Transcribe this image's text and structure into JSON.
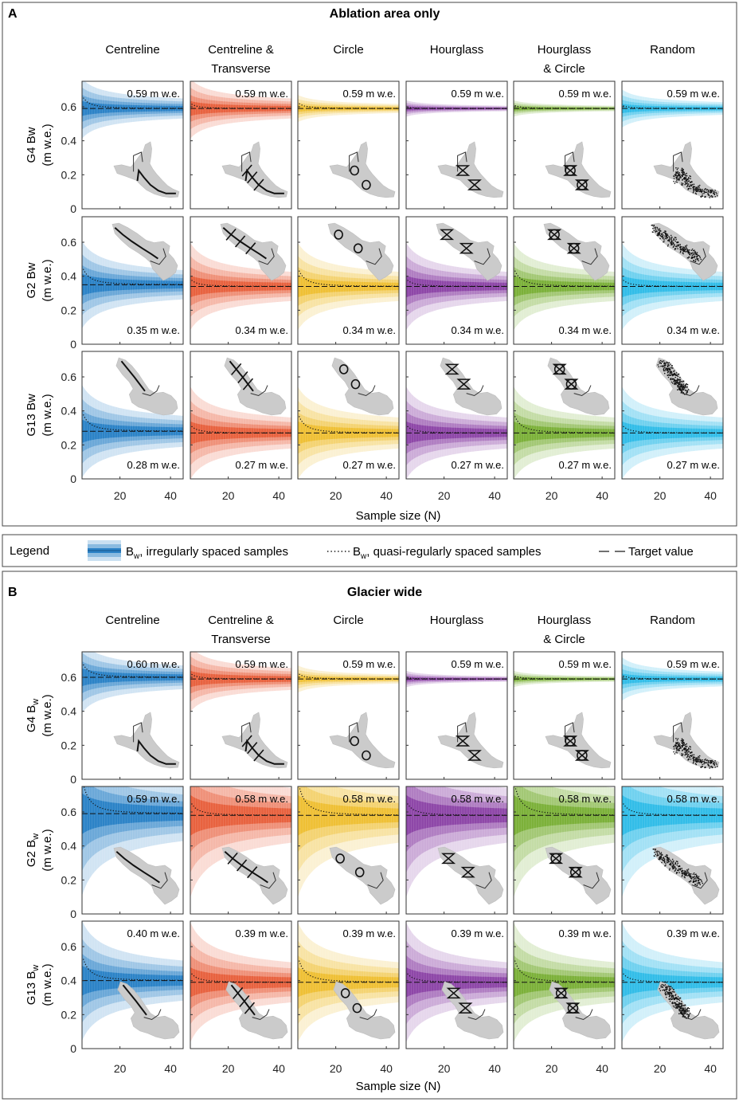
{
  "figure": {
    "legend": {
      "title": "Legend",
      "items": [
        {
          "label_main": "B",
          "label_sub": "w",
          "label_rest": ", irregularly spaced samples",
          "style": "band"
        },
        {
          "label_main": "B",
          "label_sub": "w",
          "label_rest": ", quasi-regularly spaced samples",
          "style": "dotted"
        },
        {
          "label_main": "Target value",
          "label_sub": "",
          "label_rest": "",
          "style": "dash"
        }
      ]
    },
    "colors": {
      "Centreline": "#2c83c7",
      "Centreline & Transverse": "#e8623f",
      "Circle": "#efc035",
      "Hourglass": "#8e47a8",
      "Hourglass & Circle": "#7cb13a",
      "Random": "#32bde8",
      "glacier": "#cbcbcb",
      "marks": "#111111"
    }
  },
  "chart_data": [
    {
      "panel_letter": "A",
      "title": "Ablation area only",
      "type": "area",
      "xlabel": "Sample size (N)",
      "x_range": [
        5,
        45
      ],
      "x_ticks": [
        20,
        40
      ],
      "ylim": [
        0,
        0.75
      ],
      "y_ticks": [
        "0",
        "0.2",
        "0.4",
        "0.6"
      ],
      "y_tick_values": [
        0,
        0.2,
        0.4,
        0.6
      ],
      "columns": [
        {
          "title_lines": [
            "Centreline"
          ]
        },
        {
          "title_lines": [
            "Centreline &",
            "Transverse"
          ]
        },
        {
          "title_lines": [
            "Circle"
          ]
        },
        {
          "title_lines": [
            "Hourglass"
          ]
        },
        {
          "title_lines": [
            "Hourglass",
            "& Circle"
          ]
        },
        {
          "title_lines": [
            "Random"
          ]
        }
      ],
      "rows": [
        {
          "glacier": "G4",
          "ylabel_main": "G4 Bw",
          "ylabel_sub": "",
          "ylabel_unit": "(m w.e.)",
          "label_pos": "top",
          "map_pos": "bottom",
          "map_shape": "G4",
          "targets": [
            0.59,
            0.59,
            0.59,
            0.59,
            0.59,
            0.59
          ],
          "annotations": [
            "0.59 m w.e.",
            "0.59 m w.e.",
            "0.59 m w.e.",
            "0.59 m w.e.",
            "0.59 m w.e.",
            "0.59 m w.e."
          ],
          "spread": [
            0.22,
            0.22,
            0.1,
            0.06,
            0.06,
            0.14
          ],
          "bias": [
            0,
            0,
            0,
            0,
            0,
            0
          ]
        },
        {
          "glacier": "G2",
          "ylabel_main": "G2 Bw",
          "ylabel_sub": "",
          "ylabel_unit": "(m w.e.)",
          "label_pos": "bottom",
          "map_pos": "top",
          "map_shape": "G2",
          "targets": [
            0.35,
            0.34,
            0.34,
            0.34,
            0.34,
            0.34
          ],
          "annotations": [
            "0.35 m w.e.",
            "0.34 m w.e.",
            "0.34 m w.e.",
            "0.34 m w.e.",
            "0.34 m w.e.",
            "0.34 m w.e."
          ],
          "spread": [
            0.32,
            0.32,
            0.32,
            0.32,
            0.32,
            0.32
          ],
          "bias": [
            0,
            0,
            0,
            0,
            0,
            0
          ]
        },
        {
          "glacier": "G13",
          "ylabel_main": "G13 Bw",
          "ylabel_sub": "",
          "ylabel_unit": "(m w.e.)",
          "label_pos": "bottom",
          "map_pos": "top",
          "map_shape": "G13",
          "targets": [
            0.28,
            0.27,
            0.27,
            0.27,
            0.27,
            0.27
          ],
          "annotations": [
            "0.28 m w.e.",
            "0.27 m w.e.",
            "0.27 m w.e.",
            "0.27 m w.e.",
            "0.27 m w.e.",
            "0.27 m w.e."
          ],
          "spread": [
            0.34,
            0.34,
            0.34,
            0.34,
            0.34,
            0.34
          ],
          "bias": [
            0,
            0,
            0,
            0,
            0,
            0
          ]
        }
      ]
    },
    {
      "panel_letter": "B",
      "title": "Glacier wide",
      "type": "area",
      "xlabel": "Sample size (N)",
      "x_range": [
        5,
        45
      ],
      "x_ticks": [
        20,
        40
      ],
      "ylim": [
        0,
        0.75
      ],
      "y_ticks": [
        "0",
        "0.2",
        "0.4",
        "0.6"
      ],
      "y_tick_values": [
        0,
        0.2,
        0.4,
        0.6
      ],
      "columns": [
        {
          "title_lines": [
            "Centreline"
          ]
        },
        {
          "title_lines": [
            "Centreline &",
            "Transverse"
          ]
        },
        {
          "title_lines": [
            "Circle"
          ]
        },
        {
          "title_lines": [
            "Hourglass"
          ]
        },
        {
          "title_lines": [
            "Hourglass",
            "& Circle"
          ]
        },
        {
          "title_lines": [
            "Random"
          ]
        }
      ],
      "rows": [
        {
          "glacier": "G4",
          "ylabel_main": "G4 B",
          "ylabel_sub": "w",
          "ylabel_unit": "(m w.e.)",
          "label_pos": "top",
          "map_pos": "bottom",
          "map_shape": "G4",
          "targets": [
            0.6,
            0.59,
            0.59,
            0.59,
            0.59,
            0.59
          ],
          "annotations": [
            "0.60 m w.e.",
            "0.59 m w.e.",
            "0.59 m w.e.",
            "0.59 m w.e.",
            "0.59 m w.e.",
            "0.59 m w.e."
          ],
          "spread": [
            0.26,
            0.24,
            0.1,
            0.06,
            0.06,
            0.16
          ],
          "bias": [
            0,
            0,
            0,
            0,
            0,
            0
          ]
        },
        {
          "glacier": "G2",
          "ylabel_main": "G2 B",
          "ylabel_sub": "w",
          "ylabel_unit": "(m w.e.)",
          "label_pos": "top",
          "map_pos": "bottom",
          "map_shape": "G2",
          "targets": [
            0.59,
            0.58,
            0.58,
            0.58,
            0.58,
            0.58
          ],
          "annotations": [
            "0.59 m w.e.",
            "0.58 m w.e.",
            "0.58 m w.e.",
            "0.58 m w.e.",
            "0.58 m w.e.",
            "0.58 m w.e."
          ],
          "spread": [
            0.6,
            0.6,
            0.6,
            0.6,
            0.6,
            0.6
          ],
          "bias": [
            0,
            0,
            0,
            0,
            0,
            0
          ]
        },
        {
          "glacier": "G13",
          "ylabel_main": "G13 B",
          "ylabel_sub": "w",
          "ylabel_unit": "(m w.e.)",
          "label_pos": "top",
          "map_pos": "bottom",
          "map_shape": "G13",
          "targets": [
            0.4,
            0.39,
            0.39,
            0.39,
            0.39,
            0.39
          ],
          "annotations": [
            "0.40 m w.e.",
            "0.39 m w.e.",
            "0.39 m w.e.",
            "0.39 m w.e.",
            "0.39 m w.e.",
            "0.39 m w.e."
          ],
          "spread": [
            0.44,
            0.44,
            0.44,
            0.44,
            0.44,
            0.44
          ],
          "bias": [
            0,
            0,
            0,
            0,
            0,
            0
          ]
        }
      ]
    }
  ]
}
